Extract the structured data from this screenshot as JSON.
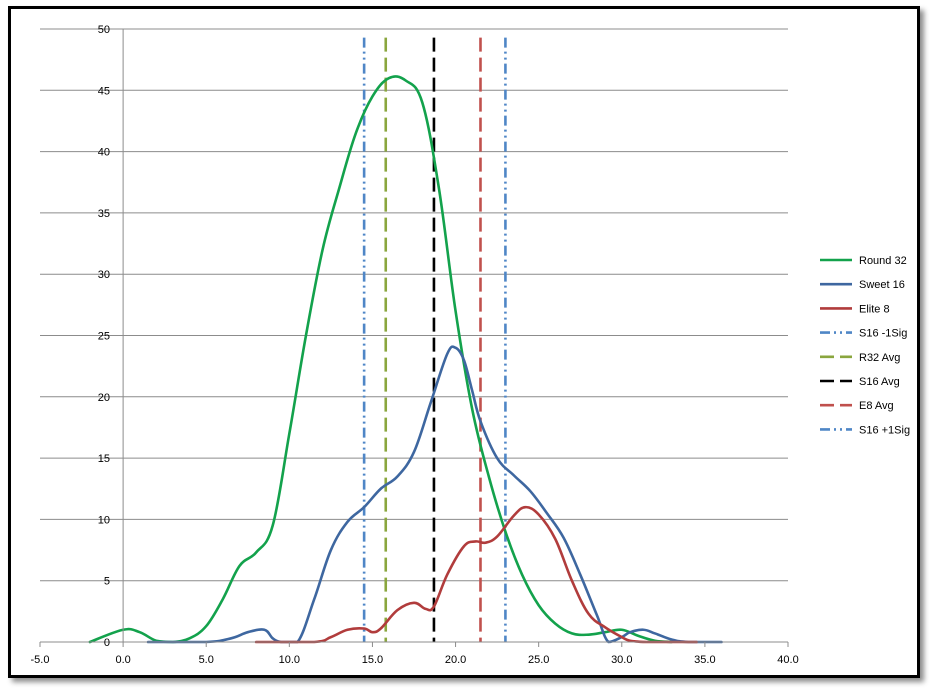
{
  "chart_data": {
    "type": "line",
    "title": "",
    "xlabel": "",
    "ylabel": "",
    "xlim": [
      -5,
      40
    ],
    "ylim": [
      0,
      50
    ],
    "x_ticks": [
      -5,
      0,
      5,
      10,
      15,
      20,
      25,
      30,
      35,
      40
    ],
    "x_tick_labels": [
      "-5.0",
      "0.0",
      "5.0",
      "10.0",
      "15.0",
      "20.0",
      "25.0",
      "30.0",
      "35.0",
      "40.0"
    ],
    "y_ticks": [
      0,
      5,
      10,
      15,
      20,
      25,
      30,
      35,
      40,
      45,
      50
    ],
    "y_tick_labels": [
      "0",
      "5",
      "10",
      "15",
      "20",
      "25",
      "30",
      "35",
      "40",
      "45",
      "50"
    ],
    "grid": "horizontal",
    "legend_position": "right",
    "series": [
      {
        "name": "Round 32",
        "color": "#13a24c",
        "style": "solid",
        "x": [
          -2,
          0,
          1,
          2,
          3,
          4,
          5,
          6,
          7,
          8,
          9,
          10,
          11,
          12,
          13,
          14,
          15,
          16,
          17,
          18,
          19,
          20,
          21,
          22,
          23,
          24,
          25,
          26,
          27,
          28,
          29,
          30,
          31,
          32,
          33
        ],
        "y": [
          0,
          1,
          0.8,
          0.1,
          0,
          0.3,
          1.3,
          3.5,
          6.2,
          7.3,
          9.5,
          17,
          25,
          32,
          37,
          41.5,
          44.5,
          46,
          45.8,
          44,
          37,
          27,
          19,
          13.5,
          9,
          5.5,
          3,
          1.5,
          0.7,
          0.6,
          0.8,
          1,
          0.5,
          0.1,
          0
        ]
      },
      {
        "name": "Sweet 16",
        "color": "#3e67a0",
        "style": "solid",
        "x": [
          1.5,
          5,
          6.5,
          7.5,
          8.5,
          9,
          9.5,
          10.5,
          11.5,
          12.5,
          13.5,
          14.5,
          15.5,
          16.5,
          17.5,
          18.5,
          19.5,
          20,
          20.5,
          21,
          21.5,
          22.5,
          23.5,
          24.5,
          25.5,
          26.5,
          27.5,
          28.5,
          29.2,
          30,
          30.5,
          31.3,
          32,
          33,
          34,
          36
        ],
        "y": [
          0,
          0,
          0.3,
          0.8,
          1,
          0.3,
          0,
          0,
          3.5,
          7.5,
          9.8,
          11,
          12.5,
          13.5,
          15.5,
          19.5,
          23.5,
          24,
          23,
          20.5,
          18,
          15,
          13.6,
          12.3,
          10.5,
          8.5,
          5.5,
          2.2,
          0,
          0.4,
          0.8,
          1,
          0.7,
          0.2,
          0,
          0
        ]
      },
      {
        "name": "Elite 8",
        "color": "#b13c3c",
        "style": "solid",
        "x": [
          8,
          11.5,
          12.5,
          13.5,
          14.5,
          15,
          15.5,
          16.5,
          17.5,
          18.2,
          18.7,
          19.5,
          20.5,
          21.2,
          21.8,
          22.5,
          23.5,
          24.2,
          25,
          26,
          27,
          28,
          29,
          30,
          30.5,
          31.5,
          33,
          34.5
        ],
        "y": [
          0,
          0,
          0.4,
          1,
          1.1,
          0.8,
          1.1,
          2.6,
          3.2,
          2.7,
          2.9,
          5.5,
          7.8,
          8.2,
          8.1,
          8.6,
          10.3,
          11,
          10.4,
          8.4,
          5,
          2.3,
          1.2,
          0.4,
          0.1,
          0,
          0,
          0
        ]
      }
    ],
    "reference_lines": [
      {
        "name": "S16 -1Sig",
        "x": 14.5,
        "color": "#4f86c6",
        "style": "dash-dot-dot"
      },
      {
        "name": "R32 Avg",
        "x": 15.8,
        "color": "#8aa63e",
        "style": "dash"
      },
      {
        "name": "S16 Avg",
        "x": 18.7,
        "color": "#000000",
        "style": "dash"
      },
      {
        "name": "E8 Avg",
        "x": 21.5,
        "color": "#c0504d",
        "style": "dash"
      },
      {
        "name": "S16 +1Sig",
        "x": 23.0,
        "color": "#4f86c6",
        "style": "dash-dot-dot"
      }
    ]
  }
}
